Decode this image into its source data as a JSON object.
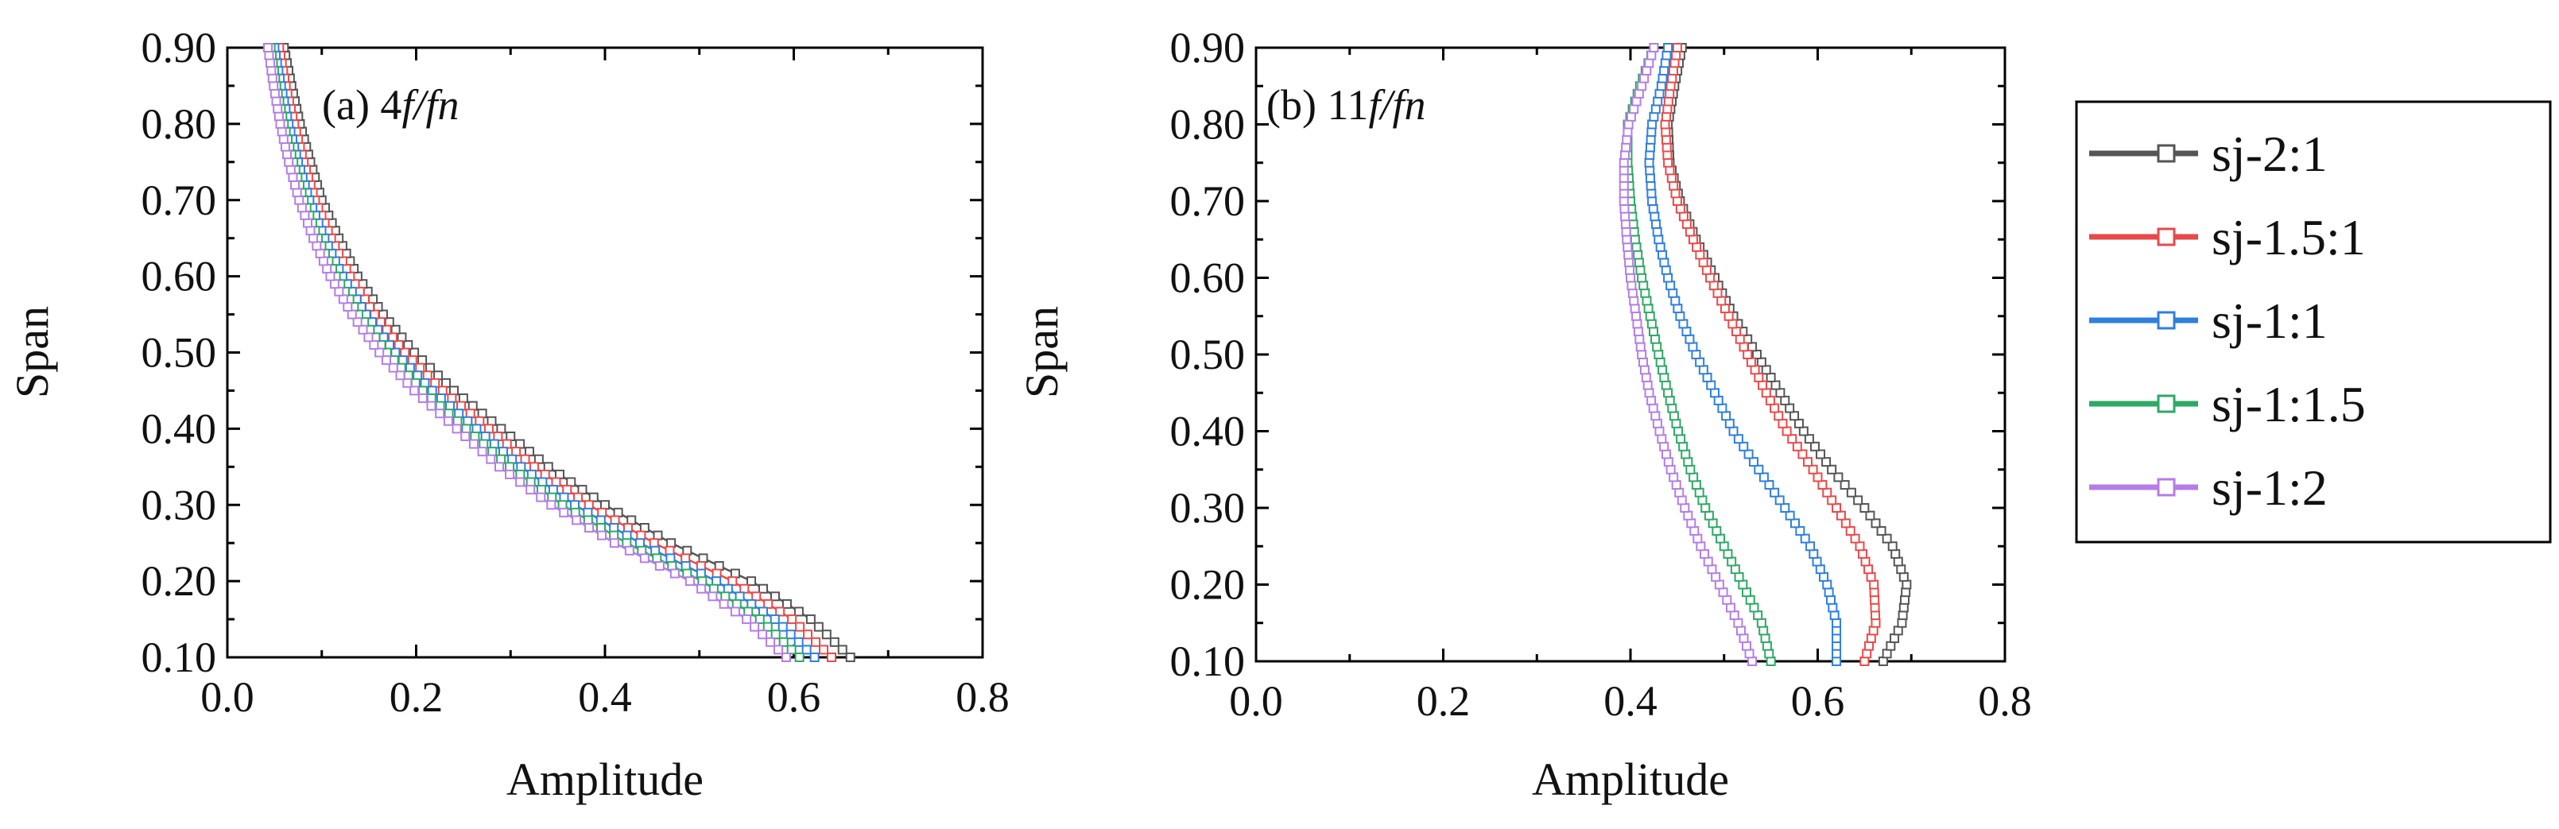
{
  "chart_data": [
    {
      "type": "line",
      "panel_label": "(a) 4",
      "panel_label_italic": "f/fn",
      "xlabel": "Amplitude",
      "ylabel": "Span",
      "xlim": [
        0.0,
        0.8
      ],
      "ylim": [
        0.1,
        0.9
      ],
      "xtick_labels": [
        "0.0",
        "0.2",
        "0.4",
        "0.6",
        "0.8"
      ],
      "ytick_labels": [
        "0.10",
        "0.20",
        "0.30",
        "0.40",
        "0.50",
        "0.60",
        "0.70",
        "0.80",
        "0.90"
      ],
      "span": [
        0.1,
        0.15,
        0.2,
        0.25,
        0.3,
        0.35,
        0.4,
        0.45,
        0.5,
        0.55,
        0.6,
        0.65,
        0.7,
        0.75,
        0.8,
        0.85,
        0.9
      ],
      "series": [
        {
          "name": "sj-2:1",
          "amplitude": [
            0.66,
            0.618,
            0.555,
            0.47,
            0.4,
            0.34,
            0.29,
            0.24,
            0.198,
            0.165,
            0.138,
            0.118,
            0.1,
            0.088,
            0.077,
            0.068,
            0.06
          ]
        },
        {
          "name": "sj-1.5:1",
          "amplitude": [
            0.64,
            0.598,
            0.535,
            0.452,
            0.383,
            0.325,
            0.277,
            0.228,
            0.188,
            0.156,
            0.13,
            0.11,
            0.093,
            0.081,
            0.071,
            0.062,
            0.055
          ]
        },
        {
          "name": "sj-1:1",
          "amplitude": [
            0.622,
            0.58,
            0.518,
            0.437,
            0.368,
            0.311,
            0.264,
            0.217,
            0.178,
            0.147,
            0.122,
            0.103,
            0.087,
            0.075,
            0.065,
            0.057,
            0.05
          ]
        },
        {
          "name": "sj-1:1.5",
          "amplitude": [
            0.606,
            0.564,
            0.503,
            0.423,
            0.355,
            0.299,
            0.253,
            0.207,
            0.169,
            0.139,
            0.115,
            0.096,
            0.081,
            0.07,
            0.06,
            0.052,
            0.046
          ]
        },
        {
          "name": "sj-1:2",
          "amplitude": [
            0.592,
            0.55,
            0.49,
            0.41,
            0.343,
            0.288,
            0.243,
            0.198,
            0.161,
            0.132,
            0.109,
            0.091,
            0.076,
            0.065,
            0.056,
            0.049,
            0.043
          ]
        }
      ]
    },
    {
      "type": "line",
      "panel_label": "(b) 11",
      "panel_label_italic": "f/fn",
      "xlabel": "Amplitude",
      "ylabel": "Span",
      "xlim": [
        0.0,
        0.8
      ],
      "ylim": [
        0.1,
        0.9
      ],
      "xtick_labels": [
        "0.0",
        "0.2",
        "0.4",
        "0.6",
        "0.8"
      ],
      "ytick_labels": [
        "0.10",
        "0.20",
        "0.30",
        "0.40",
        "0.50",
        "0.60",
        "0.70",
        "0.80",
        "0.90"
      ],
      "span": [
        0.1,
        0.15,
        0.2,
        0.25,
        0.3,
        0.35,
        0.4,
        0.45,
        0.5,
        0.55,
        0.6,
        0.65,
        0.7,
        0.75,
        0.8,
        0.85,
        0.9
      ],
      "series": [
        {
          "name": "sj-2:1",
          "amplitude": [
            0.67,
            0.69,
            0.695,
            0.68,
            0.65,
            0.615,
            0.585,
            0.56,
            0.535,
            0.51,
            0.49,
            0.47,
            0.453,
            0.442,
            0.44,
            0.447,
            0.455
          ]
        },
        {
          "name": "sj-1.5:1",
          "amplitude": [
            0.65,
            0.662,
            0.66,
            0.645,
            0.62,
            0.595,
            0.567,
            0.545,
            0.525,
            0.505,
            0.485,
            0.467,
            0.45,
            0.44,
            0.437,
            0.443,
            0.45
          ]
        },
        {
          "name": "sj-1:1",
          "amplitude": [
            0.62,
            0.62,
            0.61,
            0.592,
            0.565,
            0.537,
            0.51,
            0.49,
            0.47,
            0.453,
            0.44,
            0.43,
            0.423,
            0.42,
            0.423,
            0.433,
            0.44
          ]
        },
        {
          "name": "sj-1:1.5",
          "amplitude": [
            0.55,
            0.54,
            0.52,
            0.5,
            0.48,
            0.464,
            0.451,
            0.44,
            0.43,
            0.421,
            0.412,
            0.405,
            0.4,
            0.397,
            0.397,
            0.41,
            0.425
          ]
        },
        {
          "name": "sj-1:2",
          "amplitude": [
            0.53,
            0.515,
            0.495,
            0.475,
            0.458,
            0.443,
            0.431,
            0.42,
            0.412,
            0.406,
            0.4,
            0.396,
            0.393,
            0.393,
            0.398,
            0.412,
            0.425
          ]
        }
      ]
    }
  ],
  "legend": {
    "entries": [
      {
        "label": "sj-2:1",
        "color": "#555555"
      },
      {
        "label": "sj-1.5:1",
        "color": "#e84a4a"
      },
      {
        "label": "sj-1:1",
        "color": "#2f7fdc"
      },
      {
        "label": "sj-1:1.5",
        "color": "#2ea866"
      },
      {
        "label": "sj-1:2",
        "color": "#b57de6"
      }
    ]
  }
}
